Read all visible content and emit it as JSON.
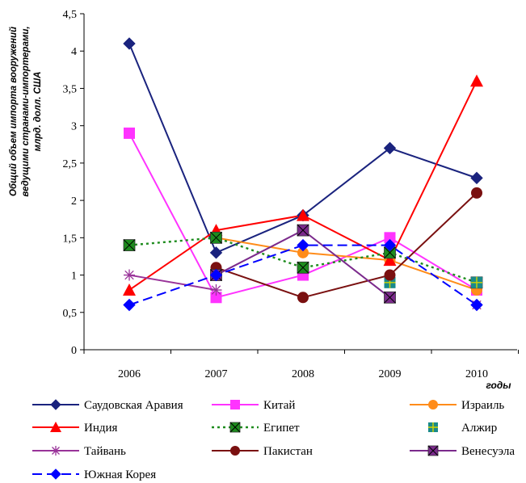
{
  "chart_data": {
    "type": "line",
    "title": "",
    "xlabel": "годы",
    "ylabel": [
      "Общий объем импорта вооружений",
      "ведущими странами-импортерами,",
      "млрд. долл. США"
    ],
    "categories": [
      "2006",
      "2007",
      "2008",
      "2009",
      "2010"
    ],
    "y_ticks": [
      "0",
      "0,5",
      "1",
      "1,5",
      "2",
      "2,5",
      "3",
      "3,5",
      "4",
      "4,5"
    ],
    "ylim": [
      0,
      4.5
    ],
    "grid": false,
    "legend_position": "bottom",
    "series": [
      {
        "name": "Саудовская Аравия",
        "values": [
          4.1,
          1.3,
          1.8,
          2.7,
          2.3
        ],
        "color": "#1a237e",
        "dash": "solid",
        "marker": "diamond"
      },
      {
        "name": "Китай",
        "values": [
          2.9,
          0.7,
          1.0,
          1.5,
          0.8
        ],
        "color": "#ff33ff",
        "dash": "solid",
        "marker": "square"
      },
      {
        "name": "Израиль",
        "values": [
          null,
          1.5,
          1.3,
          1.2,
          0.8
        ],
        "color": "#ff8c1a",
        "dash": "solid",
        "marker": "circle"
      },
      {
        "name": "Индия",
        "values": [
          0.8,
          1.6,
          1.8,
          1.2,
          3.6
        ],
        "color": "#ff0000",
        "dash": "solid",
        "marker": "triangle"
      },
      {
        "name": "Египет",
        "values": [
          1.4,
          1.5,
          1.1,
          1.3,
          0.9
        ],
        "color": "#1e8c1e",
        "dash": "dotted",
        "marker": "xsquare"
      },
      {
        "name": "Алжир",
        "values": [
          null,
          null,
          null,
          0.9,
          0.9
        ],
        "color": "#1a8a8a",
        "dash": "none",
        "marker": "plussquare"
      },
      {
        "name": "Тайвань",
        "values": [
          1.0,
          0.8,
          null,
          null,
          0.6
        ],
        "color": "#993399",
        "dash": "solid",
        "marker": "asterisk"
      },
      {
        "name": "Пакистан",
        "values": [
          null,
          1.1,
          0.7,
          1.0,
          2.1
        ],
        "color": "#7a1010",
        "dash": "solid",
        "marker": "circle"
      },
      {
        "name": "Венесуэла",
        "values": [
          null,
          1.0,
          1.6,
          0.7,
          null
        ],
        "color": "#7b2a8c",
        "dash": "solid",
        "marker": "xsquare"
      },
      {
        "name": "Южная Корея",
        "values": [
          0.6,
          1.0,
          1.4,
          1.4,
          0.6
        ],
        "color": "#0000ff",
        "dash": "dashed",
        "marker": "diamond"
      }
    ]
  }
}
